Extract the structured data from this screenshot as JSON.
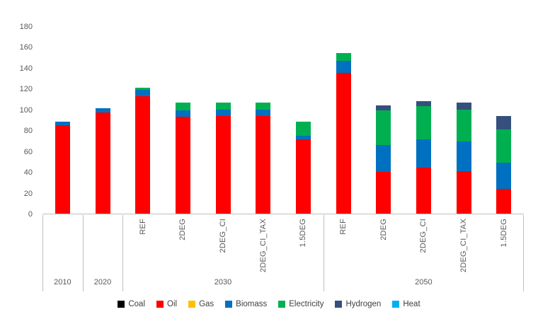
{
  "chart_data": {
    "type": "bar",
    "stacked": true,
    "title": "",
    "xlabel": "",
    "ylabel": "",
    "ylim": [
      0,
      180
    ],
    "ytick_step": 20,
    "grid": false,
    "legend_position": "bottom",
    "group_labels": [
      "2010",
      "2020",
      "2030",
      "2050"
    ],
    "group_sizes": [
      1,
      1,
      5,
      5
    ],
    "bar_labels": [
      "",
      "",
      "REF",
      "2DEG",
      "2DEG_CI",
      "2DEG_CI_TAX",
      "1.5DEG",
      "REF",
      "2DEG",
      "2DEG_CI",
      "2DEG_CI_TAX",
      "1.5DEG"
    ],
    "series": [
      {
        "name": "Coal",
        "color": "#000000",
        "values": [
          0,
          0,
          0,
          0,
          0,
          0,
          0,
          0,
          0,
          0,
          0,
          0
        ]
      },
      {
        "name": "Oil",
        "color": "#FF0000",
        "values": [
          85,
          97,
          113,
          93,
          94,
          94,
          71,
          135,
          40,
          44,
          41,
          24
        ]
      },
      {
        "name": "Gas",
        "color": "#FFC000",
        "values": [
          0,
          0,
          0,
          0,
          0,
          0,
          0,
          0,
          0,
          0,
          0,
          0
        ]
      },
      {
        "name": "Biomass",
        "color": "#0070C0",
        "values": [
          3,
          4,
          6,
          6,
          6,
          6,
          4,
          12,
          26,
          27,
          28,
          25
        ]
      },
      {
        "name": "Electricity",
        "color": "#00B050",
        "values": [
          0,
          0,
          2,
          8,
          7,
          7,
          13,
          7,
          33,
          32,
          31,
          32
        ]
      },
      {
        "name": "Hydrogen",
        "color": "#35507C",
        "values": [
          0,
          0,
          0,
          0,
          0,
          0,
          0,
          0,
          5,
          5,
          7,
          13
        ]
      },
      {
        "name": "Heat",
        "color": "#00B0F0",
        "values": [
          0,
          0,
          0,
          0,
          0,
          0,
          0,
          0,
          0,
          0,
          0,
          0
        ]
      }
    ]
  }
}
